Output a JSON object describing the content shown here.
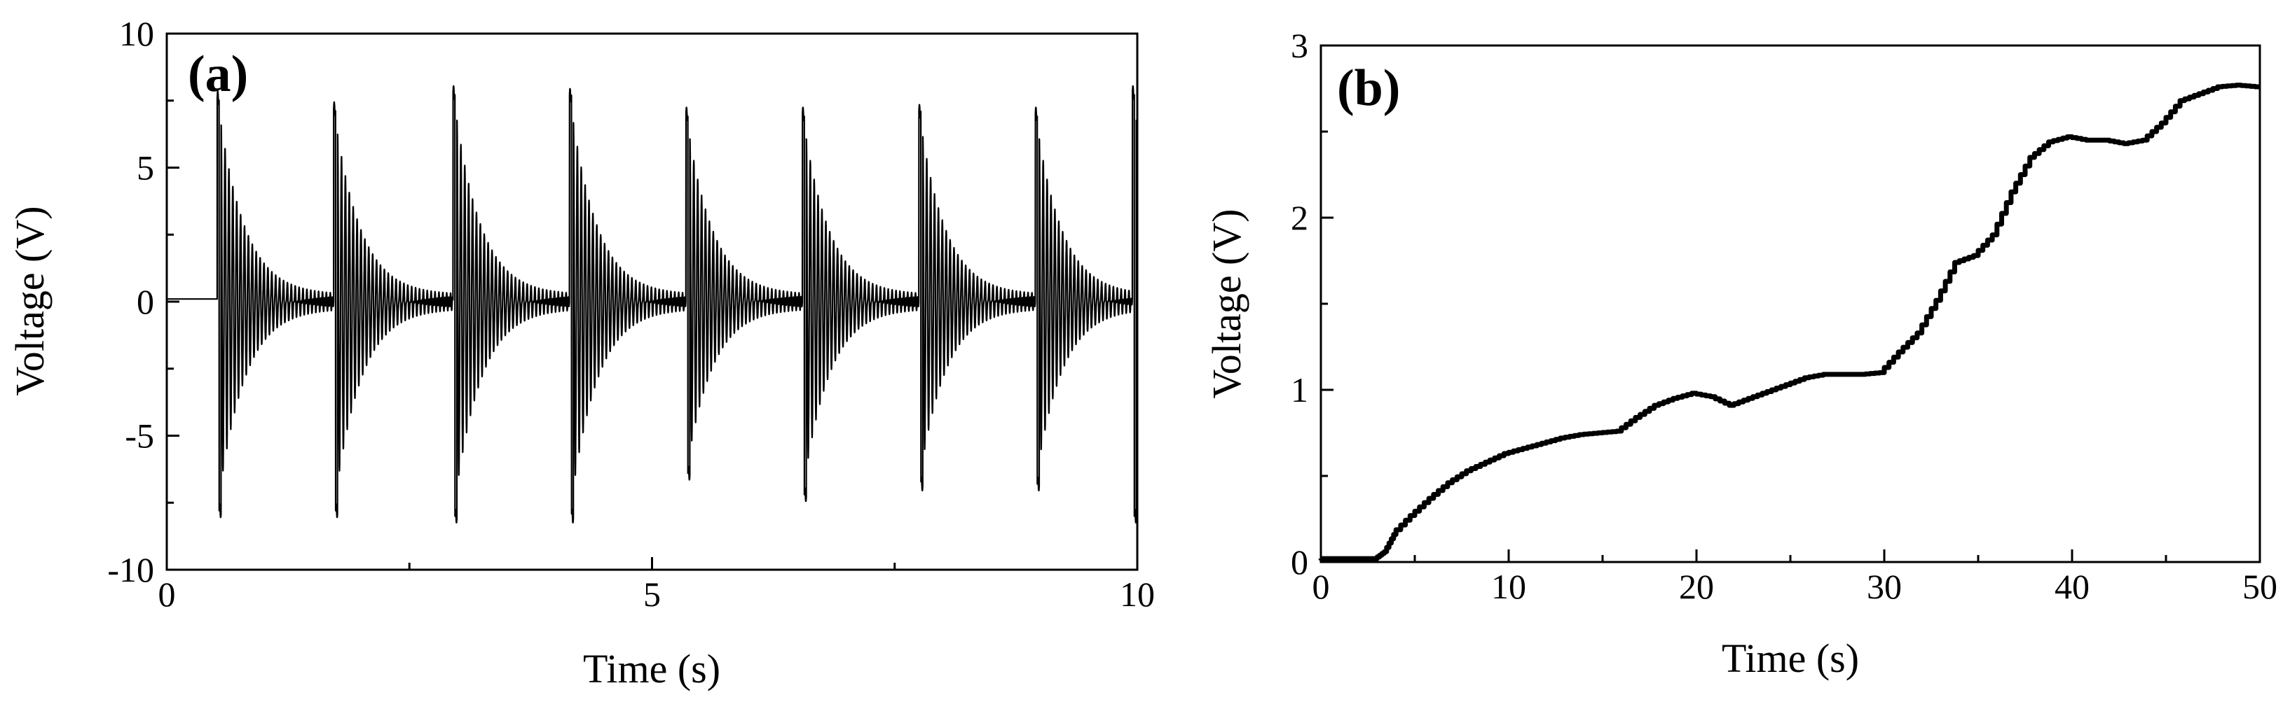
{
  "figure": {
    "background": "#ffffff",
    "line_color": "#000000"
  },
  "chart_data": [
    {
      "type": "line",
      "panel_label": "(a)",
      "title": "",
      "xlabel": "Time (s)",
      "ylabel": "Voltage (V)",
      "xlim": [
        0,
        10
      ],
      "ylim": [
        -10,
        10
      ],
      "x_ticks": [
        0,
        5,
        10
      ],
      "x_tick_labels": [
        "0",
        "5",
        "10"
      ],
      "y_ticks": [
        10,
        5,
        0,
        -5,
        -10
      ],
      "y_tick_labels": [
        "10",
        "5",
        "0",
        "-5",
        "-10"
      ],
      "grid": false,
      "legend": "none",
      "line_width": "thin",
      "baseline_before_first_event": 0.1,
      "oscillation_frequency_hz": 25,
      "events": [
        {
          "t": 0.52,
          "peak_pos": 7.6,
          "peak_neg": -7.8
        },
        {
          "t": 1.72,
          "peak_pos": 7.2,
          "peak_neg": -7.8
        },
        {
          "t": 2.95,
          "peak_pos": 7.8,
          "peak_neg": -8.0
        },
        {
          "t": 4.15,
          "peak_pos": 7.7,
          "peak_neg": -8.0
        },
        {
          "t": 5.35,
          "peak_pos": 7.0,
          "peak_neg": -6.4
        },
        {
          "t": 6.55,
          "peak_pos": 7.0,
          "peak_neg": -7.2
        },
        {
          "t": 7.75,
          "peak_pos": 7.1,
          "peak_neg": -6.8
        },
        {
          "t": 8.95,
          "peak_pos": 7.0,
          "peak_neg": -6.8
        },
        {
          "t": 9.95,
          "peak_pos": 7.8,
          "peak_neg": -8.0
        }
      ]
    },
    {
      "type": "line",
      "panel_label": "(b)",
      "title": "",
      "xlabel": "Time (s)",
      "ylabel": "Voltage (V)",
      "xlim": [
        0,
        50
      ],
      "ylim": [
        0,
        3
      ],
      "x_ticks": [
        0,
        10,
        20,
        30,
        40,
        50
      ],
      "x_tick_labels": [
        "0",
        "10",
        "20",
        "30",
        "40",
        "50"
      ],
      "y_ticks": [
        0,
        1,
        2,
        3
      ],
      "y_tick_labels": [
        "0",
        "1",
        "2",
        "3"
      ],
      "grid": false,
      "legend": "none",
      "line_width": "thick",
      "x": [
        0,
        3,
        3.5,
        4,
        5,
        6,
        7,
        8,
        9,
        10,
        11,
        12,
        13,
        14,
        15,
        16,
        17,
        18,
        19,
        20,
        21,
        22,
        23,
        24,
        25,
        26,
        27,
        28,
        29,
        30,
        31,
        32,
        33,
        34,
        35,
        36,
        37,
        38,
        39,
        40,
        41,
        42,
        43,
        44,
        45,
        46,
        47,
        48,
        49,
        50
      ],
      "y": [
        0.02,
        0.02,
        0.06,
        0.16,
        0.27,
        0.37,
        0.46,
        0.53,
        0.58,
        0.63,
        0.66,
        0.69,
        0.72,
        0.74,
        0.75,
        0.76,
        0.84,
        0.91,
        0.95,
        0.98,
        0.96,
        0.91,
        0.95,
        0.99,
        1.03,
        1.07,
        1.09,
        1.09,
        1.09,
        1.1,
        1.22,
        1.33,
        1.52,
        1.74,
        1.78,
        1.9,
        2.15,
        2.35,
        2.44,
        2.47,
        2.45,
        2.45,
        2.43,
        2.45,
        2.55,
        2.68,
        2.72,
        2.76,
        2.77,
        2.76
      ]
    }
  ]
}
